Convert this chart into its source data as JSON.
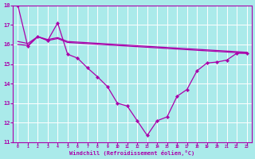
{
  "xlabel": "Windchill (Refroidissement éolien,°C)",
  "background_color": "#aaeaea",
  "grid_color": "#ffffff",
  "line_color": "#aa00aa",
  "ylim": [
    11,
    18
  ],
  "xlim": [
    0,
    23
  ],
  "yticks": [
    11,
    12,
    13,
    14,
    15,
    16,
    17,
    18
  ],
  "xticks": [
    0,
    1,
    2,
    3,
    4,
    5,
    6,
    7,
    8,
    9,
    10,
    11,
    12,
    13,
    14,
    15,
    16,
    17,
    18,
    19,
    20,
    21,
    22,
    23
  ],
  "series_marker": {
    "x": [
      0,
      1,
      2,
      3,
      4,
      5,
      6,
      7,
      8,
      9,
      10,
      11,
      12,
      13,
      14,
      15,
      16,
      17,
      18,
      19,
      20,
      21,
      22,
      23
    ],
    "y": [
      18.0,
      15.9,
      16.4,
      16.2,
      17.1,
      15.5,
      15.3,
      14.8,
      14.35,
      13.85,
      13.0,
      12.85,
      12.1,
      11.35,
      12.1,
      12.3,
      13.35,
      13.7,
      14.65,
      15.05,
      15.1,
      15.2,
      15.55,
      15.55
    ]
  },
  "series_line1": {
    "x": [
      0,
      1,
      2,
      3,
      4,
      5,
      23
    ],
    "y": [
      16.0,
      15.95,
      16.4,
      16.2,
      16.3,
      16.1,
      15.55
    ]
  },
  "series_line2": {
    "x": [
      0,
      1,
      2,
      3,
      4,
      5,
      23
    ],
    "y": [
      16.15,
      16.05,
      16.4,
      16.25,
      16.35,
      16.15,
      15.6
    ]
  }
}
